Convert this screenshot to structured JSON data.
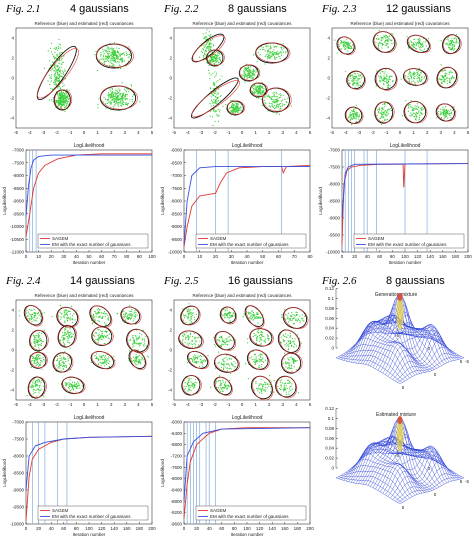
{
  "panels": [
    {
      "fig": "Fig. 2.1",
      "title": "4 gaussians",
      "scatter": {
        "title": "Reference (blue) and estimated (red) covariances",
        "xticks": [
          -5,
          -4,
          -3,
          -2,
          -1,
          0,
          1,
          2,
          3,
          4,
          5
        ],
        "yticks": [
          -4,
          -2,
          0,
          2,
          4
        ]
      },
      "loglik": {
        "title": "LogLikelihood",
        "ylabel": "LogLikelihood",
        "xlabel": "Iteration number",
        "xlim": [
          0,
          100
        ],
        "ylim": [
          -11000,
          -7000
        ],
        "xticks": [
          0,
          10,
          20,
          30,
          40,
          50,
          60,
          70,
          80,
          90,
          100
        ],
        "yticks": [
          -7000,
          -7500,
          -8000,
          -8500,
          -9000,
          -9500,
          -10000,
          -10500,
          -11000
        ],
        "vlines": [
          3,
          5,
          8
        ],
        "series": [
          {
            "name": "SAGEM",
            "color": "#e03a2f",
            "x": [
              0,
              3,
              6,
              10,
              15,
              25,
              40,
              60,
              100
            ],
            "values": [
              -10400,
              -9500,
              -8500,
              -7900,
              -7600,
              -7350,
              -7200,
              -7150,
              -7150
            ]
          },
          {
            "name": "EM with the exact number of gaussians",
            "color": "#3550e0",
            "x": [
              0,
              2,
              4,
              6,
              10,
              20,
              100
            ],
            "values": [
              -9600,
              -8400,
              -7700,
              -7400,
              -7250,
              -7200,
              -7200
            ]
          }
        ]
      }
    },
    {
      "fig": "Fig. 2.2",
      "title": "8 gaussians",
      "scatter": {
        "title": "Reference (blue) and estimated (red) covariances",
        "xticks": [
          -5,
          -4,
          -3,
          -2,
          -1,
          0,
          1,
          2,
          3,
          4,
          5
        ],
        "yticks": [
          -4,
          -2,
          0,
          2,
          4
        ]
      },
      "loglik": {
        "title": "LogLikelihood",
        "ylabel": "LogLikelihood",
        "xlabel": "Iteration number",
        "xlim": [
          0,
          80
        ],
        "ylim": [
          -10000,
          -6000
        ],
        "xticks": [
          0,
          10,
          20,
          30,
          40,
          50,
          60,
          70,
          80
        ],
        "yticks": [
          -6000,
          -6500,
          -7000,
          -7500,
          -8000,
          -8500,
          -9000,
          -9500,
          -10000
        ],
        "vlines": [
          8,
          20,
          28,
          62
        ],
        "series": [
          {
            "name": "SAGEM",
            "color": "#e03a2f",
            "x": [
              0,
              2,
              5,
              10,
              20,
              23,
              27,
              35,
              50,
              62,
              63,
              65,
              80
            ],
            "values": [
              -9800,
              -9000,
              -8200,
              -7800,
              -7700,
              -7300,
              -6900,
              -6700,
              -6650,
              -6650,
              -6900,
              -6650,
              -6600
            ]
          },
          {
            "name": "EM with the exact number of gaussians",
            "color": "#3550e0",
            "x": [
              0,
              2,
              5,
              10,
              20,
              80
            ],
            "values": [
              -9700,
              -8000,
              -7000,
              -6700,
              -6650,
              -6650
            ]
          }
        ]
      }
    },
    {
      "fig": "Fig. 2.3",
      "title": "12 gaussians",
      "scatter": {
        "title": "Reference (blue) and estimated (red) covariances",
        "xticks": [
          -5,
          -4,
          -3,
          -2,
          -1,
          0,
          1,
          2,
          3,
          4,
          5
        ],
        "yticks": [
          -4,
          -2,
          0,
          2,
          4
        ]
      },
      "loglik": {
        "title": "LogLikelihood",
        "ylabel": "LogLikelihood",
        "xlabel": "Iteration number",
        "xlim": [
          0,
          200
        ],
        "ylim": [
          -10000,
          -7000
        ],
        "xticks": [
          0,
          20,
          40,
          60,
          80,
          100,
          120,
          140,
          160,
          180,
          200
        ],
        "yticks": [
          -7000,
          -7500,
          -8000,
          -8500,
          -9000,
          -9500,
          -10000
        ],
        "vlines": [
          5,
          10,
          15,
          20,
          35,
          40,
          55,
          100,
          135
        ],
        "series": [
          {
            "name": "SAGEM",
            "color": "#e03a2f",
            "x": [
              0,
              3,
              8,
              15,
              30,
              60,
              97,
              98,
              100,
              102,
              200
            ],
            "values": [
              -9800,
              -8000,
              -7600,
              -7500,
              -7450,
              -7420,
              -7420,
              -8100,
              -7420,
              -7410,
              -7400
            ]
          },
          {
            "name": "EM with the exact number of gaussians",
            "color": "#3550e0",
            "x": [
              0,
              5,
              10,
              20,
              200
            ],
            "values": [
              -9000,
              -7700,
              -7500,
              -7420,
              -7400
            ]
          }
        ]
      }
    },
    {
      "fig": "Fig. 2.4",
      "title": "14 gaussians",
      "scatter": {
        "title": "Reference (blue) and estimated (red) covariances",
        "xticks": [
          -5,
          -4,
          -3,
          -2,
          -1,
          0,
          1,
          2,
          3,
          4,
          5
        ],
        "yticks": [
          -4,
          -2,
          0,
          2,
          4
        ]
      },
      "loglik": {
        "title": "LogLikelihood",
        "ylabel": "LogLikelihood",
        "xlabel": "Iteration number",
        "xlim": [
          0,
          200
        ],
        "ylim": [
          -10000,
          -7000
        ],
        "xticks": [
          0,
          20,
          40,
          60,
          80,
          100,
          120,
          140,
          160,
          180,
          200
        ],
        "yticks": [
          -7000,
          -7500,
          -8000,
          -8500,
          -9000,
          -9500,
          -10000
        ],
        "vlines": [
          10,
          20,
          30,
          50,
          65
        ],
        "series": [
          {
            "name": "SAGEM",
            "color": "#e03a2f",
            "x": [
              0,
              5,
              10,
              20,
              40,
              60,
              100,
              200
            ],
            "values": [
              -9900,
              -8600,
              -8100,
              -7800,
              -7600,
              -7500,
              -7450,
              -7420
            ]
          },
          {
            "name": "EM with the exact number of gaussians",
            "color": "#3550e0",
            "x": [
              0,
              5,
              15,
              30,
              60,
              100,
              200
            ],
            "values": [
              -9000,
              -8000,
              -7700,
              -7600,
              -7500,
              -7450,
              -7420
            ]
          }
        ]
      }
    },
    {
      "fig": "Fig. 2.5",
      "title": "16 gaussians",
      "scatter": {
        "title": "Reference (blue) and estimated (red) covariances",
        "xticks": [
          -5,
          -4,
          -3,
          -2,
          -1,
          0,
          1,
          2,
          3,
          4,
          5
        ],
        "yticks": [
          -4,
          -2,
          0,
          2,
          4
        ]
      },
      "loglik": {
        "title": "LogLikelihood",
        "ylabel": "LogLikelihood",
        "xlabel": "Iteration number",
        "xlim": [
          0,
          200
        ],
        "ylim": [
          -9600,
          -6000
        ],
        "xticks": [
          0,
          20,
          40,
          60,
          80,
          100,
          120,
          140,
          160,
          180,
          200
        ],
        "yticks": [
          -6000,
          -6400,
          -6800,
          -7200,
          -7600,
          -8000,
          -8400,
          -8800,
          -9200,
          -9600
        ],
        "vlines": [
          5,
          10,
          15,
          20,
          25,
          35,
          40,
          50
        ],
        "series": [
          {
            "name": "SAGEM",
            "color": "#e03a2f",
            "x": [
              0,
              5,
              10,
              20,
              40,
              60,
              100,
              200
            ],
            "values": [
              -9400,
              -8200,
              -7400,
              -6800,
              -6400,
              -6250,
              -6200,
              -6200
            ]
          },
          {
            "name": "EM with the exact number of gaussians",
            "color": "#3550e0",
            "x": [
              0,
              5,
              15,
              30,
              60,
              200
            ],
            "values": [
              -8800,
              -7200,
              -6700,
              -6400,
              -6250,
              -6200
            ]
          }
        ]
      }
    }
  ],
  "surface_panel": {
    "fig": "Fig. 2.6",
    "title": "8 gaussians",
    "plots": [
      {
        "title": "Generation mixture",
        "zticks": [
          0,
          0.02,
          0.04,
          0.06,
          0.08,
          0.1,
          0.12
        ],
        "xyticks": [
          -5,
          0,
          5
        ]
      },
      {
        "title": "Estimated mixture",
        "zticks": [
          0,
          0.02,
          0.04,
          0.06,
          0.08,
          0.1,
          0.12
        ],
        "xyticks": [
          -5,
          0,
          5
        ]
      }
    ]
  }
}
